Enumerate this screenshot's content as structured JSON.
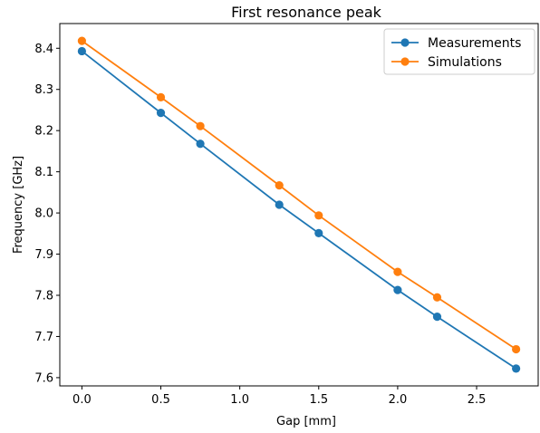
{
  "chart_data": {
    "type": "line",
    "title": "First resonance peak",
    "xlabel": "Gap [mm]",
    "ylabel": "Frequency [GHz]",
    "xlim": [
      -0.14,
      2.89
    ],
    "ylim": [
      7.58,
      8.46
    ],
    "xticks": [
      "0.0",
      "0.5",
      "1.0",
      "1.5",
      "2.0",
      "2.5"
    ],
    "yticks": [
      "7.6",
      "7.7",
      "7.8",
      "7.9",
      "8.0",
      "8.1",
      "8.2",
      "8.3",
      "8.4"
    ],
    "grid": false,
    "legend_position": "top-right",
    "x": [
      0.0,
      0.5,
      0.75,
      1.25,
      1.5,
      2.0,
      2.25,
      2.75
    ],
    "series": [
      {
        "name": "Measurements",
        "color": "#1f77b4",
        "marker": "circle",
        "values": [
          8.393,
          8.243,
          8.168,
          8.02,
          7.951,
          7.813,
          7.748,
          7.622
        ]
      },
      {
        "name": "Simulations",
        "color": "#ff7f0e",
        "marker": "circle",
        "values": [
          8.418,
          8.281,
          8.211,
          8.067,
          7.994,
          7.857,
          7.795,
          7.669
        ]
      }
    ]
  }
}
